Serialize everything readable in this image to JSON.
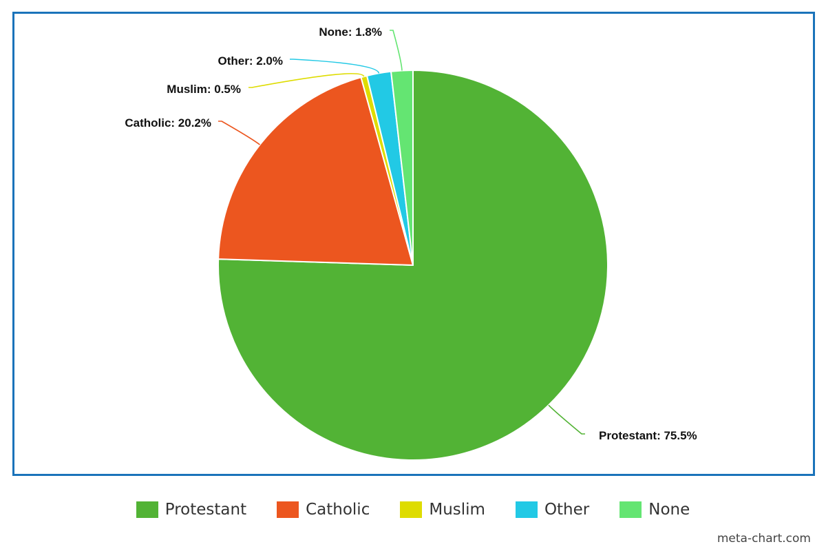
{
  "chart_data": {
    "type": "pie",
    "categories": [
      "Protestant",
      "Catholic",
      "Muslim",
      "Other",
      "None"
    ],
    "values": [
      75.5,
      20.2,
      0.5,
      2.0,
      1.8
    ],
    "labels": [
      "Protestant: 75.5%",
      "Catholic: 20.2%",
      "Muslim: 0.5%",
      "Other: 2.0%",
      "None: 1.8%"
    ],
    "colors": [
      "#52b335",
      "#ec561f",
      "#dedc00",
      "#22c9e5",
      "#64e572"
    ],
    "legend_position": "bottom",
    "start_angle": "top, clockwise"
  },
  "footer": {
    "credit": "meta-chart.com"
  }
}
